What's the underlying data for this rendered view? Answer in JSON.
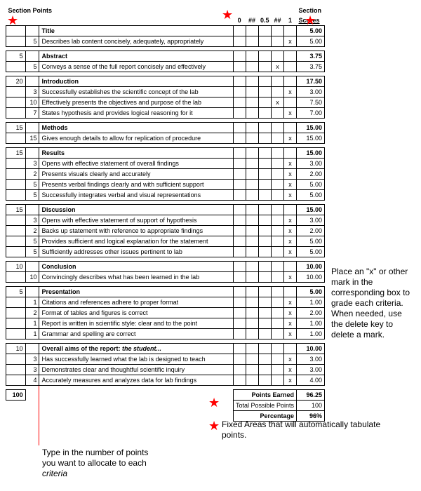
{
  "headers": {
    "section_points": "Section Points",
    "section_scores": "Section\nScores",
    "score_cols": [
      "0",
      "##",
      "0.5",
      "##",
      "1"
    ]
  },
  "sections": [
    {
      "sp": "5",
      "name": "Title",
      "score": "5.00",
      "rows": [
        {
          "pt": "5",
          "desc": "Describes lab content concisely, adequately, appropriately",
          "marks": [
            "",
            "",
            "",
            "",
            "x"
          ],
          "score": "5.00"
        }
      ]
    },
    {
      "sp": "5",
      "name": "Abstract",
      "score": "3.75",
      "rows": [
        {
          "pt": "5",
          "desc": "Conveys a sense of the full report concisely and effectively",
          "marks": [
            "",
            "",
            "",
            "x",
            ""
          ],
          "score": "3.75"
        }
      ]
    },
    {
      "sp": "20",
      "name": "Introduction",
      "score": "17.50",
      "rows": [
        {
          "pt": "3",
          "desc": "Successfully establishes the scientific concept of the lab",
          "marks": [
            "",
            "",
            "",
            "",
            "x"
          ],
          "score": "3.00"
        },
        {
          "pt": "10",
          "desc": "Effectively presents the objectives and purpose of the lab",
          "marks": [
            "",
            "",
            "",
            "x",
            ""
          ],
          "score": "7.50"
        },
        {
          "pt": "7",
          "desc": "States hypothesis and provides logical reasoning for it",
          "marks": [
            "",
            "",
            "",
            "",
            "x"
          ],
          "score": "7.00"
        }
      ]
    },
    {
      "sp": "15",
      "name": "Methods",
      "score": "15.00",
      "rows": [
        {
          "pt": "15",
          "desc": "Gives enough details to allow for replication of procedure",
          "marks": [
            "",
            "",
            "",
            "",
            "x"
          ],
          "score": "15.00"
        }
      ]
    },
    {
      "sp": "15",
      "name": "Results",
      "score": "15.00",
      "rows": [
        {
          "pt": "3",
          "desc": "Opens with effective statement of overall findings",
          "marks": [
            "",
            "",
            "",
            "",
            "x"
          ],
          "score": "3.00"
        },
        {
          "pt": "2",
          "desc": "Presents visuals clearly and accurately",
          "marks": [
            "",
            "",
            "",
            "",
            "x"
          ],
          "score": "2.00"
        },
        {
          "pt": "5",
          "desc": "Presents verbal findings clearly and with sufficient support",
          "marks": [
            "",
            "",
            "",
            "",
            "x"
          ],
          "score": "5.00"
        },
        {
          "pt": "5",
          "desc": "Successfully integrates verbal and visual representations",
          "marks": [
            "",
            "",
            "",
            "",
            "x"
          ],
          "score": "5.00"
        }
      ]
    },
    {
      "sp": "15",
      "name": "Discussion",
      "score": "15.00",
      "rows": [
        {
          "pt": "3",
          "desc": "Opens with effective statement of support of hypothesis",
          "marks": [
            "",
            "",
            "",
            "",
            "x"
          ],
          "score": "3.00"
        },
        {
          "pt": "2",
          "desc": "Backs up statement with reference to appropriate findings",
          "marks": [
            "",
            "",
            "",
            "",
            "x"
          ],
          "score": "2.00"
        },
        {
          "pt": "5",
          "desc": "Provides sufficient and logical explanation for the statement",
          "marks": [
            "",
            "",
            "",
            "",
            "x"
          ],
          "score": "5.00"
        },
        {
          "pt": "5",
          "desc": "Sufficiently addresses other issues pertinent to lab",
          "marks": [
            "",
            "",
            "",
            "",
            "x"
          ],
          "score": "5.00"
        }
      ]
    },
    {
      "sp": "10",
      "name": "Conclusion",
      "score": "10.00",
      "rows": [
        {
          "pt": "10",
          "desc": "Convincingly describes what has been learned in the lab",
          "marks": [
            "",
            "",
            "",
            "",
            "x"
          ],
          "score": "10.00"
        }
      ]
    },
    {
      "sp": "5",
      "name": "Presentation",
      "score": "5.00",
      "rows": [
        {
          "pt": "1",
          "desc": "Citations and references adhere to proper format",
          "marks": [
            "",
            "",
            "",
            "",
            "x"
          ],
          "score": "1.00"
        },
        {
          "pt": "2",
          "desc": "Format of tables and figures is correct",
          "marks": [
            "",
            "",
            "",
            "",
            "x"
          ],
          "score": "2.00"
        },
        {
          "pt": "1",
          "desc": "Report is written in scientific style: clear and to the point",
          "marks": [
            "",
            "",
            "",
            "",
            "x"
          ],
          "score": "1.00"
        },
        {
          "pt": "1",
          "desc": "Grammar and spelling are correct",
          "marks": [
            "",
            "",
            "",
            "",
            "x"
          ],
          "score": "1.00"
        }
      ]
    },
    {
      "sp": "10",
      "name_html": "Overall aims of the report: <span class=\"italic\">the student...</span>",
      "score": "10.00",
      "rows": [
        {
          "pt": "3",
          "desc": "Has successfully learned what the lab is designed to teach",
          "marks": [
            "",
            "",
            "",
            "",
            "x"
          ],
          "score": "3.00"
        },
        {
          "pt": "3",
          "desc": "Demonstrates clear and thoughtful scientific inquiry",
          "marks": [
            "",
            "",
            "",
            "",
            "x"
          ],
          "score": "3.00"
        },
        {
          "pt": "4",
          "desc": "Accurately measures and analyzes data for lab findings",
          "marks": [
            "",
            "",
            "",
            "",
            "x"
          ],
          "score": "4.00"
        }
      ]
    }
  ],
  "totals": {
    "section_total": "100",
    "points_earned_label": "Points Earned",
    "points_earned": "96.25",
    "total_possible_label": "Total Possible Points",
    "total_possible": "100",
    "percentage_label": "Percentage",
    "percentage": "96%"
  },
  "annotations": {
    "right": "Place an \"x\" or other mark in the corresponding box to grade each criteria. When needed, use the delete key to delete a mark.",
    "bottom_left_1": "Type in the number of points you want to allocate to each ",
    "bottom_left_em": "criteria",
    "fixed_areas": "Fixed Areas that will automatically tabulate points."
  }
}
